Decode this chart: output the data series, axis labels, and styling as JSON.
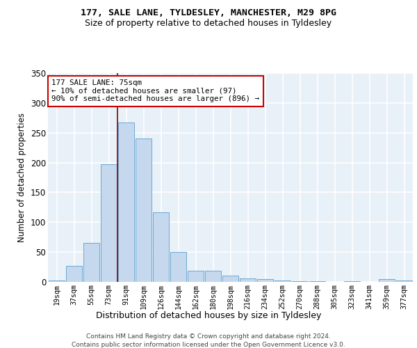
{
  "title1": "177, SALE LANE, TYLDESLEY, MANCHESTER, M29 8PG",
  "title2": "Size of property relative to detached houses in Tyldesley",
  "xlabel": "Distribution of detached houses by size in Tyldesley",
  "ylabel": "Number of detached properties",
  "categories": [
    "19sqm",
    "37sqm",
    "55sqm",
    "73sqm",
    "91sqm",
    "109sqm",
    "126sqm",
    "144sqm",
    "162sqm",
    "180sqm",
    "198sqm",
    "216sqm",
    "234sqm",
    "252sqm",
    "270sqm",
    "288sqm",
    "305sqm",
    "323sqm",
    "341sqm",
    "359sqm",
    "377sqm"
  ],
  "values": [
    2,
    27,
    65,
    197,
    267,
    240,
    117,
    50,
    19,
    19,
    10,
    6,
    5,
    2,
    1,
    1,
    0,
    1,
    0,
    5,
    2
  ],
  "bar_color": "#c5d8ed",
  "bar_edge_color": "#6aaad4",
  "vline_color": "#8b0000",
  "annotation_text": "177 SALE LANE: 75sqm\n← 10% of detached houses are smaller (97)\n90% of semi-detached houses are larger (896) →",
  "vline_x": 3.5,
  "ylim": [
    0,
    350
  ],
  "yticks": [
    0,
    50,
    100,
    150,
    200,
    250,
    300,
    350
  ],
  "footer1": "Contains HM Land Registry data © Crown copyright and database right 2024.",
  "footer2": "Contains public sector information licensed under the Open Government Licence v3.0.",
  "bg_color": "#e8f0f8",
  "grid_color": "#d0dce8"
}
